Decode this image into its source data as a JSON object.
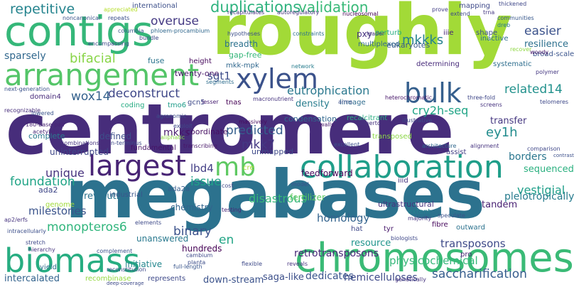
{
  "words": [
    {
      "text": "centromere",
      "color": "#472d7b"
    },
    {
      "text": "roughly",
      "color": "#a2da37"
    },
    {
      "text": "megabases",
      "color": "#2c728e"
    },
    {
      "text": "contigs",
      "color": "#35b779"
    },
    {
      "text": "chromosomes",
      "color": "#3aba76"
    },
    {
      "text": "arrangement",
      "color": "#54c568"
    },
    {
      "text": "collaboration",
      "color": "#1f9e89"
    },
    {
      "text": "biomass",
      "color": "#27ad81"
    },
    {
      "text": "largest",
      "color": "#482475"
    },
    {
      "text": "xylem",
      "color": "#3b528b"
    },
    {
      "text": "bulk",
      "color": "#355f8d"
    },
    {
      "text": "mb",
      "color": "#5ec962"
    },
    {
      "text": "repetitive",
      "color": "#25848e"
    },
    {
      "text": "duplications",
      "color": "#2db27d"
    },
    {
      "text": "validation",
      "color": "#38b977"
    },
    {
      "text": "overuse",
      "color": "#443983"
    },
    {
      "text": "bifacial",
      "color": "#89d548"
    },
    {
      "text": "sparsely",
      "color": "#31688e"
    },
    {
      "text": "mkkks",
      "color": "#26828e"
    },
    {
      "text": "eutrophication",
      "color": "#2a788e"
    },
    {
      "text": "deconstruct",
      "color": "#3f4889"
    },
    {
      "text": "predicted",
      "color": "#355f8d"
    },
    {
      "text": "wox14",
      "color": "#34618d"
    },
    {
      "text": "related14",
      "color": "#21918c"
    },
    {
      "text": "easier",
      "color": "#3b528b"
    },
    {
      "text": "resilience",
      "color": "#2d708e"
    },
    {
      "text": "unique",
      "color": "#46327e"
    },
    {
      "text": "foundation",
      "color": "#20a486"
    },
    {
      "text": "mkk7",
      "color": "#443983"
    },
    {
      "text": "cry2h-seq",
      "color": "#20a486"
    },
    {
      "text": "ey1h",
      "color": "#228c8d"
    },
    {
      "text": "lbd4",
      "color": "#433e85"
    },
    {
      "text": "issue",
      "color": "#1fa187"
    },
    {
      "text": "monopteros6",
      "color": "#30b57c"
    },
    {
      "text": "binary",
      "color": "#3b528b"
    },
    {
      "text": "en",
      "color": "#21a585"
    },
    {
      "text": "disastrous",
      "color": "#35b779"
    },
    {
      "text": "transposons",
      "color": "#3e4a89"
    },
    {
      "text": "retrotransposons",
      "color": "#482878"
    },
    {
      "text": "vestigial",
      "color": "#1f9e89"
    },
    {
      "text": "pleiotropically",
      "color": "#287c8e"
    },
    {
      "text": "saccharification",
      "color": "#365d8d"
    },
    {
      "text": "hemicelluloses",
      "color": "#3e4989"
    },
    {
      "text": "milestones",
      "color": "#3a538b"
    },
    {
      "text": "homology",
      "color": "#33638d"
    },
    {
      "text": "resource",
      "color": "#1f948c"
    },
    {
      "text": "physicochemical",
      "color": "#35b779"
    },
    {
      "text": "transfer",
      "color": "#453781"
    },
    {
      "text": "sgt1",
      "color": "#3d4d8a"
    },
    {
      "text": "mkks",
      "color": "#481b6d"
    },
    {
      "text": "borders",
      "color": "#2a768e"
    },
    {
      "text": "sequenced",
      "color": "#2ab07f"
    },
    {
      "text": "tandem",
      "color": "#482173"
    },
    {
      "text": "fertilizer",
      "color": "#5ec962"
    },
    {
      "text": "revolution",
      "color": "#2c728e"
    },
    {
      "text": "ultrastructural",
      "color": "#46337f"
    },
    {
      "text": "chemistry",
      "color": "#32648e"
    },
    {
      "text": "unanswered",
      "color": "#29798e"
    },
    {
      "text": "hundreds",
      "color": "#440154"
    },
    {
      "text": "dedicates",
      "color": "#3a548c"
    },
    {
      "text": "saga-like",
      "color": "#3c4f8a"
    },
    {
      "text": "down-stream",
      "color": "#3b528b"
    },
    {
      "text": "intercalated",
      "color": "#33638d"
    },
    {
      "text": "initiative",
      "color": "#24878e"
    },
    {
      "text": "complete",
      "color": "#2a788e"
    },
    {
      "text": "defined",
      "color": "#3d4e8a"
    },
    {
      "text": "coordinate",
      "color": "#471063"
    },
    {
      "text": "density",
      "color": "#287d8e"
    },
    {
      "text": "feedforward",
      "color": "#46075a"
    },
    {
      "text": "uninterrupted",
      "color": "#3f4788"
    },
    {
      "text": "unmapped",
      "color": "#3e4a89"
    },
    {
      "text": "condensation",
      "color": "#31688e"
    },
    {
      "text": "breadth",
      "color": "#2c728e"
    },
    {
      "text": "gap-free",
      "color": "#34b679"
    },
    {
      "text": "mkk-mpk",
      "color": "#31688e"
    },
    {
      "text": "twenty-one",
      "color": "#48186a"
    },
    {
      "text": "fuse",
      "color": "#2b748e"
    },
    {
      "text": "height",
      "color": "#46085c"
    },
    {
      "text": "pxy",
      "color": "#46337f"
    },
    {
      "text": "eukaryotes",
      "color": "#38588c"
    },
    {
      "text": "perturb",
      "color": "#27ad81"
    },
    {
      "text": "multiplexed",
      "color": "#31688e"
    },
    {
      "text": "determining",
      "color": "#472a7a"
    },
    {
      "text": "inactive",
      "color": "#2e6f8e"
    },
    {
      "text": "systematic",
      "color": "#2e6e8e"
    },
    {
      "text": "broad-scale",
      "color": "#3a548c"
    },
    {
      "text": "shape",
      "color": "#3c4f8a"
    },
    {
      "text": "iiie",
      "color": "#482576"
    },
    {
      "text": "mapping",
      "color": "#3e4989"
    },
    {
      "text": "fundamental",
      "color": "#471365"
    },
    {
      "text": "ada2",
      "color": "#3f4788"
    },
    {
      "text": "ada2a",
      "color": "#365d8d"
    },
    {
      "text": "genome",
      "color": "#a0da39"
    },
    {
      "text": "industrial",
      "color": "#39568c"
    },
    {
      "text": "yield",
      "color": "#2d708e"
    },
    {
      "text": "recombinase",
      "color": "#95d840"
    },
    {
      "text": "represents",
      "color": "#3e4989"
    },
    {
      "text": "hat",
      "color": "#3f4889"
    },
    {
      "text": "tyr",
      "color": "#481a6c"
    },
    {
      "text": "extent",
      "color": "#26828e"
    },
    {
      "text": "fibre",
      "color": "#46085c"
    },
    {
      "text": "outward",
      "color": "#2c728e"
    },
    {
      "text": "iiid",
      "color": "#46337f"
    },
    {
      "text": "cre",
      "color": "#a8db34"
    },
    {
      "text": "recalcitrant",
      "color": "#27ad81"
    },
    {
      "text": "transposed",
      "color": "#8bd646"
    },
    {
      "text": "assist",
      "color": "#433e85"
    },
    {
      "text": "tnas",
      "color": "#440154"
    },
    {
      "text": "tmo6",
      "color": "#1e9c89"
    },
    {
      "text": "gcn5",
      "color": "#3e4a89"
    },
    {
      "text": "lineage",
      "color": "#2f6c8e"
    },
    {
      "text": "domain4",
      "color": "#472a7a"
    },
    {
      "text": "coding",
      "color": "#25ab82"
    },
    {
      "text": "international",
      "color": "#3c4f8a"
    },
    {
      "text": "columbia",
      "color": "#38588c"
    },
    {
      "text": "phloem-procambium",
      "color": "#31688e"
    },
    {
      "text": "recapitulates",
      "color": "#46337f"
    },
    {
      "text": "autoregulatory",
      "color": "#46337f"
    },
    {
      "text": "nucleosomal",
      "color": "#440154"
    },
    {
      "text": "prove",
      "color": "#433e85"
    },
    {
      "text": "extend",
      "color": "#3e4a89"
    },
    {
      "text": "thickened",
      "color": "#3f4788"
    },
    {
      "text": "trna",
      "color": "#453882"
    },
    {
      "text": "communities",
      "color": "#38588c"
    },
    {
      "text": "dreb",
      "color": "#297a8e"
    },
    {
      "text": "recover",
      "color": "#8fd744"
    },
    {
      "text": "woody",
      "color": "#48186a"
    },
    {
      "text": "polymer",
      "color": "#453882"
    },
    {
      "text": "telomeres",
      "color": "#3e4989"
    },
    {
      "text": "noncanonical",
      "color": "#3a548c"
    },
    {
      "text": "repeats",
      "color": "#3c508b"
    },
    {
      "text": "appreciated",
      "color": "#b5de2b"
    },
    {
      "text": "encompassing",
      "color": "#3e4a89"
    },
    {
      "text": "bundle",
      "color": "#3f4889"
    },
    {
      "text": "hypotheses",
      "color": "#3c4f8a"
    },
    {
      "text": "constraints",
      "color": "#2d708e"
    },
    {
      "text": "leader",
      "color": "#453781"
    },
    {
      "text": "network",
      "color": "#287d8e"
    },
    {
      "text": "segments",
      "color": "#2e6e8e"
    },
    {
      "text": "macronutrient",
      "color": "#46337f"
    },
    {
      "text": "arms",
      "color": "#3c4f8a"
    },
    {
      "text": "heterochromatic",
      "color": "#481769"
    },
    {
      "text": "three-fold",
      "color": "#3f4788"
    },
    {
      "text": "screens",
      "color": "#46337f"
    },
    {
      "text": "next-generation",
      "color": "#3b528b"
    },
    {
      "text": "lesser",
      "color": "#482173"
    },
    {
      "text": "exploit",
      "color": "#3e4a89"
    },
    {
      "text": "massively",
      "color": "#460b5e"
    },
    {
      "text": "walls",
      "color": "#481b6d"
    },
    {
      "text": "hitherto",
      "color": "#46337f"
    },
    {
      "text": "illustrative",
      "color": "#3e4a89"
    },
    {
      "text": "agronomic",
      "color": "#3d4e8a"
    },
    {
      "text": "aliphatic",
      "color": "#8bd646"
    },
    {
      "text": "recognizable",
      "color": "#472d7b"
    },
    {
      "text": "lowered",
      "color": "#3a548c"
    },
    {
      "text": "180-base-pair",
      "color": "#482475"
    },
    {
      "text": "acetylate",
      "color": "#482878"
    },
    {
      "text": "combinations",
      "color": "#46337f"
    },
    {
      "text": "n-terminus",
      "color": "#3e4a89"
    },
    {
      "text": "transcribing",
      "color": "#481769"
    },
    {
      "text": "excellent",
      "color": "#3c508b"
    },
    {
      "text": "architecture",
      "color": "#31688e"
    },
    {
      "text": "alignment",
      "color": "#46337f"
    },
    {
      "text": "comparison",
      "color": "#3f4788"
    },
    {
      "text": "ap2/erfs",
      "color": "#46337f"
    },
    {
      "text": "intracellularly",
      "color": "#3c4f8a"
    },
    {
      "text": "stretch",
      "color": "#3f4889"
    },
    {
      "text": "hierarchy",
      "color": "#46337f"
    },
    {
      "text": "elements",
      "color": "#3e4a89"
    },
    {
      "text": "complement",
      "color": "#3b528b"
    },
    {
      "text": "reconstitution",
      "color": "#3e4a89"
    },
    {
      "text": "full-length",
      "color": "#39568c"
    },
    {
      "text": "cost",
      "color": "#3e4989"
    },
    {
      "text": "model",
      "color": "#3c508b"
    },
    {
      "text": "testing",
      "color": "#482576"
    },
    {
      "text": "majority",
      "color": "#46337f"
    },
    {
      "text": "cambium",
      "color": "#3e4989"
    },
    {
      "text": "planta",
      "color": "#3d4e8a"
    },
    {
      "text": "flexible",
      "color": "#3e4a89"
    },
    {
      "text": "biologists",
      "color": "#3f4889"
    },
    {
      "text": "speculate",
      "color": "#3b528b"
    },
    {
      "text": "reveals",
      "color": "#46337f"
    },
    {
      "text": "pro",
      "color": "#482173"
    },
    {
      "text": "genetically",
      "color": "#46337f"
    },
    {
      "text": "deep-coverage",
      "color": "#3e4a89"
    },
    {
      "text": "contrast",
      "color": "#3c508b"
    }
  ]
}
